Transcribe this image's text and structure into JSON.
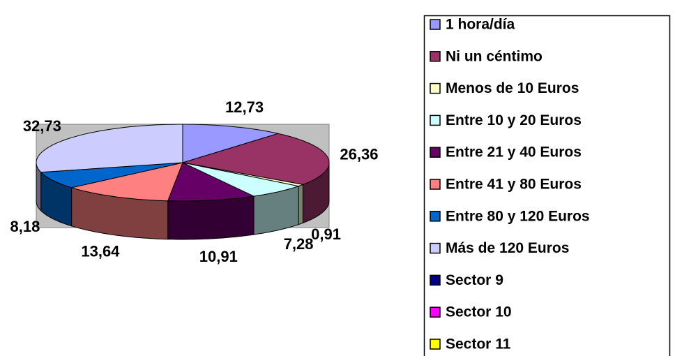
{
  "chart_data": {
    "type": "pie3d",
    "categories": [
      "1 hora/día",
      "Ni un céntimo",
      "Menos de 10 Euros",
      "Entre 10 y 20 Euros",
      "Entre 21 y 40 Euros",
      "Entre 41 y 80 Euros",
      "Entre 80 y 120 Euros",
      "Más de 120 Euros",
      "Sector 9",
      "Sector 10",
      "Sector 11"
    ],
    "values": [
      12.73,
      26.36,
      0.91,
      7.28,
      10.91,
      13.64,
      8.18,
      32.73,
      null,
      null,
      null
    ],
    "value_labels": [
      "12,73",
      "26,36",
      "0,91",
      "7,28",
      "10,91",
      "13,64",
      "8,18",
      "32,73",
      null,
      null,
      null
    ],
    "colors": [
      "#9999ff",
      "#993366",
      "#ffffcc",
      "#ccffff",
      "#660066",
      "#ff8080",
      "#0066cc",
      "#ccccff",
      "#000080",
      "#ff00ff",
      "#ffff00"
    ],
    "legend": "right"
  }
}
